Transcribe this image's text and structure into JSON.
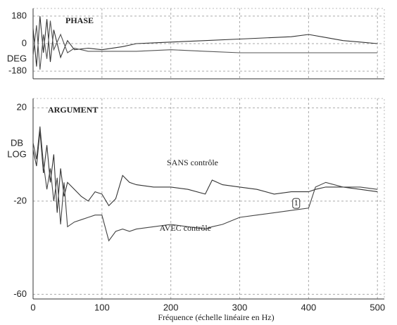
{
  "chart_data": [
    {
      "type": "line",
      "title": "PHASE",
      "ylabel": [
        "DEG"
      ],
      "x": [
        0,
        5,
        10,
        15,
        20,
        25,
        30,
        40,
        50,
        60,
        80,
        100,
        130,
        150,
        175,
        200,
        250,
        300,
        350,
        375,
        400,
        425,
        450,
        475,
        500
      ],
      "series": [
        {
          "color": "#333333",
          "values": [
            100,
            -150,
            180,
            -60,
            160,
            -120,
            90,
            -90,
            20,
            -40,
            -30,
            -40,
            -20,
            0,
            5,
            10,
            20,
            30,
            40,
            45,
            60,
            40,
            20,
            10,
            0
          ]
        },
        {
          "color": "#555555",
          "values": [
            -80,
            120,
            -170,
            60,
            -100,
            150,
            -40,
            60,
            -60,
            -30,
            -50,
            -50,
            -50,
            -50,
            -45,
            -40,
            -50,
            -60,
            -60,
            -60,
            -60,
            -60,
            -60,
            -60,
            -60
          ]
        }
      ],
      "xlim": [
        0,
        510
      ],
      "ylim": [
        -230,
        230
      ],
      "yticks": [
        180,
        0,
        -180
      ],
      "grid": true
    },
    {
      "type": "line",
      "title": "ARGUMENT",
      "ylabel": [
        "DB",
        "LOG"
      ],
      "xlabel": "Fréquence (échelle linéaire en Hz)",
      "x": [
        0,
        5,
        10,
        15,
        20,
        25,
        30,
        35,
        40,
        45,
        50,
        60,
        70,
        80,
        90,
        100,
        110,
        120,
        130,
        140,
        150,
        175,
        200,
        225,
        250,
        260,
        275,
        300,
        325,
        350,
        375,
        400,
        410,
        425,
        450,
        475,
        500
      ],
      "series": [
        {
          "name": "SANS contrôle",
          "color": "#333333",
          "values": [
            2,
            -5,
            10,
            -8,
            4,
            -12,
            0,
            -25,
            -6,
            -18,
            -12,
            -15,
            -18,
            -20,
            -16,
            -17,
            -22,
            -19,
            -9,
            -12,
            -13,
            -14,
            -14,
            -15,
            -17,
            -11,
            -13,
            -14,
            -15,
            -17,
            -16,
            -16,
            -15,
            -14,
            -14,
            -15,
            -16
          ]
        },
        {
          "name": "AVEC contrôle",
          "color": "#444444",
          "values": [
            5,
            -2,
            12,
            -4,
            -15,
            -6,
            -20,
            -10,
            -30,
            -12,
            -31,
            -29,
            -28,
            -27,
            -26,
            -26,
            -37,
            -33,
            -32,
            -33,
            -32,
            -31,
            -30,
            -31,
            -32,
            -31,
            -30,
            -27,
            -26,
            -25,
            -24,
            -23,
            -14,
            -12,
            -14,
            -14,
            -15
          ]
        }
      ],
      "annotations": [
        {
          "text": "1",
          "x": 382,
          "y": -21
        }
      ],
      "xlim": [
        0,
        510
      ],
      "ylim": [
        -62,
        24
      ],
      "xticks": [
        0,
        100,
        200,
        300,
        400,
        500
      ],
      "yticks": [
        20,
        -20,
        -60
      ],
      "grid": true
    }
  ]
}
